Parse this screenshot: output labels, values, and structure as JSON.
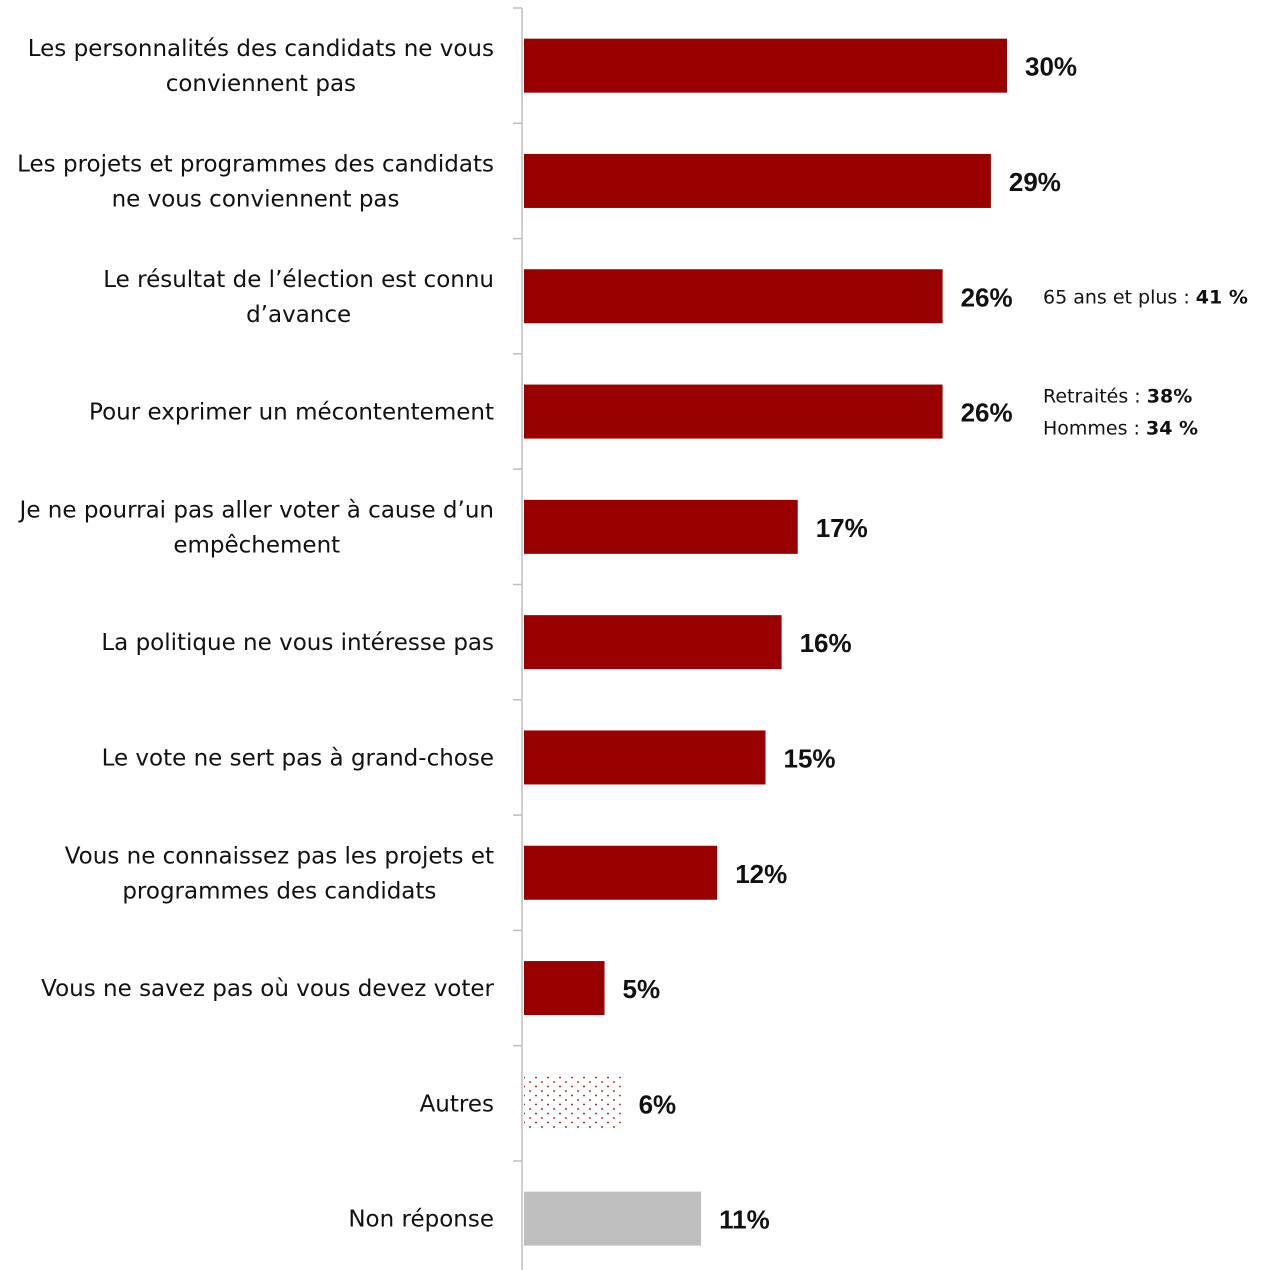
{
  "chart_data": {
    "type": "bar",
    "orientation": "horizontal",
    "title": "",
    "xlabel": "",
    "ylabel": "",
    "xlim": [
      0,
      30
    ],
    "grid": false,
    "value_suffix": "%",
    "colors": {
      "main": "#990000",
      "other_pattern_dot": "#990000",
      "no_answer": "#bfbfbf",
      "axis": "#bfbfbf"
    },
    "categories": [
      "Les personnalités des candidats ne vous conviennent pas",
      "Les projets et programmes des candidats ne vous conviennent pas",
      "Le résultat de l’élection est connu d’avance",
      "Pour exprimer un mécontentement",
      "Je ne pourrai pas aller voter à cause d’un empêchement",
      "La politique ne vous intéresse pas",
      "Le vote ne sert pas à grand-chose",
      "Vous ne connaissez pas les projets et programmes des candidats",
      "Vous ne savez pas où vous devez voter",
      "Autres",
      "Non réponse"
    ],
    "values": [
      30,
      29,
      26,
      26,
      17,
      16,
      15,
      12,
      5,
      6,
      11
    ],
    "value_labels": [
      "30%",
      "29%",
      "26%",
      "26%",
      "17%",
      "16%",
      "15%",
      "12%",
      "5%",
      "6%",
      "11%"
    ],
    "styles": [
      "solid",
      "solid",
      "solid",
      "solid",
      "solid",
      "solid",
      "solid",
      "solid",
      "solid",
      "dotted",
      "grey"
    ],
    "annotations": [
      {
        "category_index": 2,
        "lines": [
          {
            "text": "65 ans et plus : ",
            "value": "41 %"
          }
        ]
      },
      {
        "category_index": 3,
        "lines": [
          {
            "text": "Retraités : ",
            "value": "38%"
          },
          {
            "text": "Hommes : ",
            "value": "34 %"
          }
        ]
      }
    ]
  }
}
